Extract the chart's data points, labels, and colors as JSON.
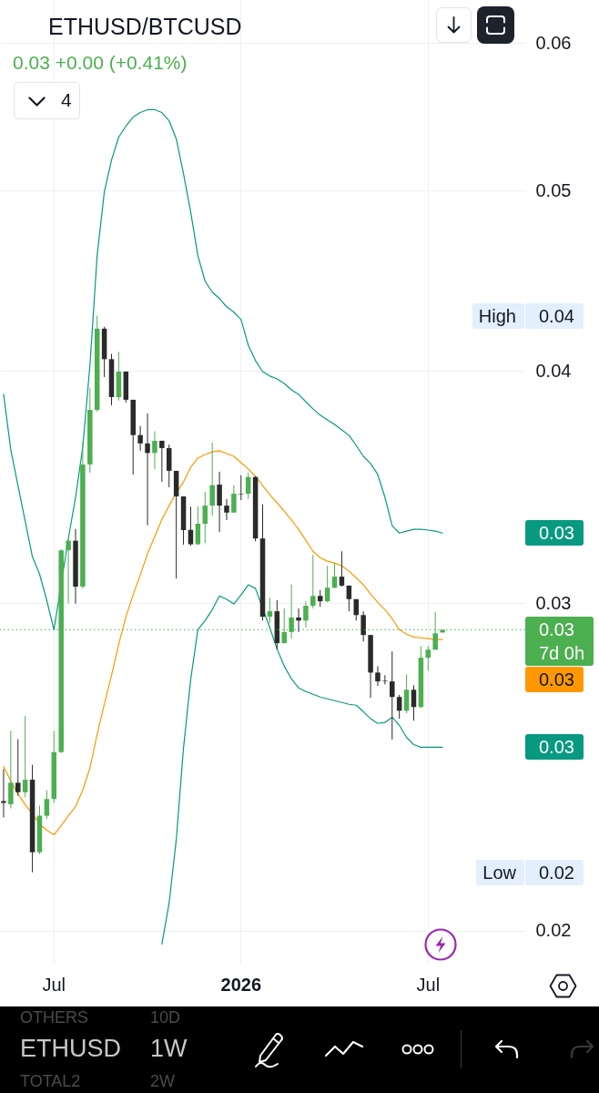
{
  "chart_data": {
    "type": "candlestick",
    "title": "ETHUSD/BTCUSD",
    "subtitle": "0.03 +0.00 (+0.41%)",
    "categories": [
      null,
      null,
      null,
      null,
      null,
      null,
      null,
      "Jul",
      null,
      null,
      null,
      null,
      null,
      null,
      null,
      null,
      null,
      null,
      null,
      null,
      null,
      null,
      null,
      null,
      null,
      null,
      null,
      null,
      null,
      null,
      null,
      null,
      null,
      "2026",
      null,
      null,
      null,
      null,
      null,
      null,
      null,
      null,
      null,
      null,
      null,
      null,
      null,
      null,
      null,
      null,
      null,
      null,
      null,
      null,
      null,
      null,
      null,
      null,
      null,
      "Jul",
      null,
      null,
      null,
      null,
      null,
      null,
      null,
      null,
      null,
      null,
      null,
      null,
      null
    ],
    "ohlc": [
      [
        0.02348,
        0.02443,
        0.02301,
        0.02343
      ],
      [
        0.02339,
        0.02561,
        0.02327,
        0.02402
      ],
      [
        0.02402,
        0.02535,
        0.02364,
        0.02374
      ],
      [
        0.02374,
        0.02609,
        0.02359,
        0.02411
      ],
      [
        0.02411,
        0.02456,
        0.0215,
        0.02204
      ],
      [
        0.02204,
        0.02335,
        0.02199,
        0.02306
      ],
      [
        0.02306,
        0.0238,
        0.02296,
        0.02354
      ],
      [
        0.02354,
        0.02561,
        0.02343,
        0.02495
      ],
      [
        0.02495,
        0.03208,
        0.02492,
        0.03203
      ],
      [
        0.03203,
        0.03247,
        0.03,
        0.03241
      ],
      [
        0.03241,
        0.03289,
        0.02998,
        0.03062
      ],
      [
        0.03062,
        0.03662,
        0.03055,
        0.03562
      ],
      [
        0.03562,
        0.03916,
        0.03526,
        0.03811
      ],
      [
        0.03811,
        0.04282,
        0.03803,
        0.04214
      ],
      [
        0.04214,
        0.04224,
        0.03969,
        0.04058
      ],
      [
        0.04058,
        0.04085,
        0.03833,
        0.03872
      ],
      [
        0.03872,
        0.04095,
        0.03855,
        0.03996
      ],
      [
        0.03996,
        0.03996,
        0.03846,
        0.03859
      ],
      [
        0.03859,
        0.03859,
        0.03518,
        0.03694
      ],
      [
        0.03694,
        0.03736,
        0.03623,
        0.03656
      ],
      [
        0.03656,
        0.03794,
        0.03304,
        0.03613
      ],
      [
        0.03613,
        0.03711,
        0.03542,
        0.03668
      ],
      [
        0.03668,
        0.03668,
        0.03486,
        0.03635
      ],
      [
        0.03635,
        0.03651,
        0.03463,
        0.03534
      ],
      [
        0.03534,
        0.03534,
        0.03093,
        0.03424
      ],
      [
        0.03424,
        0.03424,
        0.03225,
        0.03284
      ],
      [
        0.03285,
        0.03381,
        0.03221,
        0.03227
      ],
      [
        0.03227,
        0.03381,
        0.03225,
        0.0331
      ],
      [
        0.0331,
        0.03443,
        0.03232,
        0.03385
      ],
      [
        0.03385,
        0.0366,
        0.03343,
        0.03472
      ],
      [
        0.03474,
        0.0353,
        0.03276,
        0.03385
      ],
      [
        0.03385,
        0.03413,
        0.03325,
        0.03356
      ],
      [
        0.03356,
        0.03472,
        0.03356,
        0.03435
      ],
      [
        0.03435,
        0.03515,
        0.03408,
        0.03433
      ],
      [
        0.03435,
        0.03526,
        0.03413,
        0.03507
      ],
      [
        0.03507,
        0.0351,
        0.03239,
        0.0325
      ],
      [
        0.0325,
        0.0339,
        0.02936,
        0.0295
      ],
      [
        0.0295,
        0.0302,
        0.02926,
        0.0297
      ],
      [
        0.0297,
        0.03011,
        0.02833,
        0.02855
      ],
      [
        0.02855,
        0.02981,
        0.02855,
        0.02895
      ],
      [
        0.02895,
        0.0307,
        0.02871,
        0.02947
      ],
      [
        0.02947,
        0.02981,
        0.02895,
        0.02936
      ],
      [
        0.02936,
        0.03007,
        0.0291,
        0.0299
      ],
      [
        0.0299,
        0.03185,
        0.02981,
        0.03027
      ],
      [
        0.03027,
        0.03049,
        0.02986,
        0.03007
      ],
      [
        0.03007,
        0.03142,
        0.03003,
        0.03058
      ],
      [
        0.03058,
        0.03154,
        0.03055,
        0.031
      ],
      [
        0.031,
        0.03199,
        0.03062,
        0.03066
      ],
      [
        0.03066,
        0.03066,
        0.0297,
        0.03015
      ],
      [
        0.03015,
        0.03015,
        0.02936,
        0.02956
      ],
      [
        0.02956,
        0.0297,
        0.02861,
        0.02884
      ],
      [
        0.02884,
        0.02884,
        0.02668,
        0.02753
      ],
      [
        0.02753,
        0.02775,
        0.02708,
        0.02723
      ],
      [
        0.02725,
        0.02744,
        0.02713,
        0.02723
      ],
      [
        0.02723,
        0.02826,
        0.02534,
        0.02671
      ],
      [
        0.02671,
        0.02678,
        0.026,
        0.02626
      ],
      [
        0.02626,
        0.02747,
        0.02618,
        0.02695
      ],
      [
        0.02695,
        0.0271,
        0.02594,
        0.02638
      ],
      [
        0.02638,
        0.02845,
        0.02635,
        0.02804
      ],
      [
        0.02804,
        0.02845,
        0.02759,
        0.02832
      ],
      [
        0.02832,
        0.02967,
        0.02832,
        0.0289
      ],
      [
        0.02893,
        0.02903,
        0.02893,
        0.02903
      ],
      null,
      null,
      null,
      null,
      null,
      null,
      null,
      null,
      null,
      null,
      null
    ],
    "colors": [
      "#2a2a2a",
      "#4caf50",
      "#2a2a2a",
      "#4caf50",
      "#2a2a2a",
      "#4caf50",
      "#4caf50",
      "#4caf50",
      "#4caf50",
      "#4caf50",
      "#2a2a2a",
      "#4caf50",
      "#4caf50",
      "#4caf50",
      "#2a2a2a",
      "#2a2a2a",
      "#4caf50",
      "#2a2a2a",
      "#2a2a2a",
      "#2a2a2a",
      "#2a2a2a",
      "#4caf50",
      "#2a2a2a",
      "#2a2a2a",
      "#2a2a2a",
      "#2a2a2a",
      "#2a2a2a",
      "#4caf50",
      "#4caf50",
      "#4caf50",
      "#2a2a2a",
      "#2a2a2a",
      "#4caf50",
      "#2a2a2a",
      "#4caf50",
      "#2a2a2a",
      "#2a2a2a",
      "#4caf50",
      "#2a2a2a",
      "#4caf50",
      "#4caf50",
      "#2a2a2a",
      "#4caf50",
      "#4caf50",
      "#2a2a2a",
      "#4caf50",
      "#4caf50",
      "#2a2a2a",
      "#2a2a2a",
      "#2a2a2a",
      "#2a2a2a",
      "#2a2a2a",
      "#2a2a2a",
      "#2a2a2a",
      "#2a2a2a",
      "#2a2a2a",
      "#4caf50",
      "#2a2a2a",
      "#4caf50",
      "#4caf50",
      "#4caf50",
      "#4caf50",
      null,
      null,
      null,
      null,
      null,
      null,
      null,
      null,
      null,
      null,
      null
    ],
    "series": [
      {
        "type": "line",
        "color": "#089981",
        "values": [
          0.03885,
          0.03627,
          0.0347,
          0.03321,
          0.03178,
          0.0311,
          0.0301,
          0.02903,
          null,
          0.0325,
          0.0342,
          0.03639,
          0.04028,
          0.04613,
          0.04992,
          0.05193,
          0.05342,
          0.05415,
          0.05476,
          0.05507,
          0.05526,
          0.05526,
          0.05507,
          0.05451,
          0.0533,
          0.05106,
          0.04869,
          0.04613,
          0.04469,
          0.04409,
          0.04374,
          0.0433,
          0.04301,
          0.04262,
          0.04129,
          0.04051,
          0.03996,
          0.03974,
          0.0396,
          0.03938,
          0.03907,
          0.03885,
          0.0385,
          0.03816,
          0.03786,
          0.03764,
          0.03743,
          0.03718,
          0.03693,
          0.03647,
          0.03598,
          0.03566,
          0.03518,
          0.0342,
          0.03302,
          0.03272,
          0.0328,
          0.03287,
          0.03287,
          0.03284,
          0.0328,
          0.03272,
          null,
          null,
          null,
          null,
          null,
          null,
          null,
          null,
          null,
          null,
          null
        ]
      },
      {
        "type": "line",
        "color": "#ff9800",
        "values": [
          0.02451,
          0.02407,
          0.02369,
          0.02338,
          0.02311,
          0.02283,
          0.02265,
          0.02252,
          0.02278,
          0.02306,
          0.02332,
          0.0238,
          0.02446,
          0.0255,
          0.02647,
          0.02744,
          0.02851,
          0.0295,
          0.03031,
          0.03107,
          0.03189,
          0.03258,
          0.03328,
          0.03385,
          0.03439,
          0.03486,
          0.0355,
          0.0359,
          0.03606,
          0.03618,
          0.03623,
          0.0361,
          0.03598,
          0.0357,
          0.03542,
          0.0351,
          0.0347,
          0.03431,
          0.03397,
          0.03362,
          0.03325,
          0.03287,
          0.03243,
          0.03199,
          0.03174,
          0.0316,
          0.03153,
          0.03142,
          0.03121,
          0.03096,
          0.03069,
          0.03034,
          0.03003,
          0.02976,
          0.02943,
          0.02903,
          0.02887,
          0.02877,
          0.02874,
          0.02871,
          0.02868,
          0.02868,
          null,
          null,
          null,
          null,
          null,
          null,
          null,
          null,
          null,
          null,
          null
        ]
      },
      {
        "type": "line",
        "color": "#089981",
        "values": [
          null,
          null,
          null,
          null,
          null,
          null,
          null,
          null,
          null,
          null,
          null,
          null,
          null,
          null,
          null,
          null,
          null,
          null,
          null,
          null,
          null,
          null,
          0.01967,
          0.02069,
          0.02239,
          0.02507,
          0.02729,
          0.02903,
          0.02936,
          0.02976,
          0.03027,
          0.03014,
          0.02997,
          0.03031,
          0.03069,
          0.03055,
          null,
          0.0291,
          0.02835,
          0.02775,
          0.02732,
          0.02701,
          0.02689,
          0.0268,
          0.02671,
          0.02665,
          0.02659,
          0.02653,
          0.02647,
          0.02644,
          0.02623,
          0.026,
          0.02585,
          0.02588,
          0.02605,
          0.02579,
          0.02541,
          0.02518,
          0.0251,
          0.0251,
          0.0251,
          0.0251,
          null,
          null,
          null,
          null,
          null,
          null,
          null,
          null,
          null,
          null,
          null
        ]
      }
    ],
    "ylim": [
      0.0192,
      0.0633
    ],
    "yticks": [
      0.06,
      0.05,
      0.04,
      0.03,
      0.02
    ],
    "log": true,
    "grid": true,
    "ref_lines": [
      {
        "axis": "y",
        "value": 0.02903,
        "label": "0.03",
        "color": "#4caf50",
        "line_style": "dotted"
      }
    ],
    "annotations": [
      "High",
      "0.04",
      "Low",
      "0.02",
      "7d 0h",
      "4",
      "ETHUSD",
      "1W",
      "OTHERS",
      "10D",
      "TOTAL2",
      "2W",
      "0.03",
      "0.03",
      "0.03"
    ]
  }
}
